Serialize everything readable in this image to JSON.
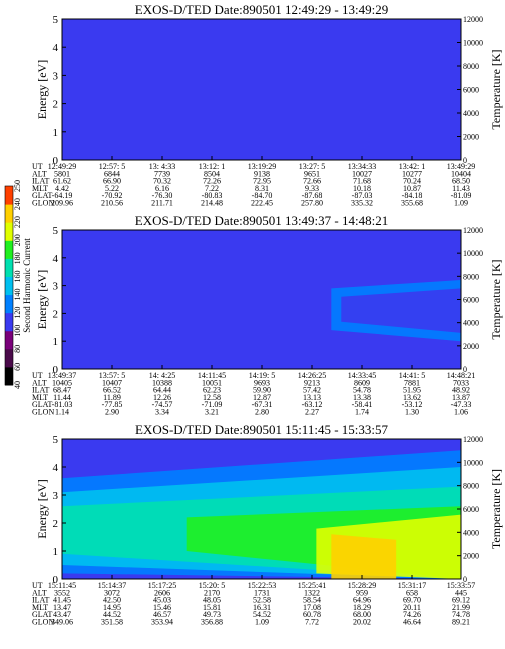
{
  "colors": {
    "background": "#3a3af0",
    "stops": [
      "#000000",
      "#4a0a4a",
      "#7a007a",
      "#3a3af0",
      "#0080ff",
      "#00c0f0",
      "#00e0b0",
      "#20f020",
      "#e0ff00",
      "#ffd000",
      "#ff4000"
    ]
  },
  "colorbar": {
    "title": "Second Harmonic Current",
    "ticks": [
      "40",
      "60",
      "80",
      "100",
      "120",
      "140",
      "160",
      "180",
      "200",
      "220",
      "240",
      "250"
    ]
  },
  "chart_data": [
    {
      "type": "heatmap",
      "title": "EXOS-D/TED   Date:890501   12:49:29 - 13:49:29",
      "ylabel": "Energy [eV]",
      "ylabel_right": "Temperature [K]",
      "ylim": [
        0,
        5
      ],
      "yticks": [
        "0",
        "1",
        "2",
        "3",
        "4",
        "5"
      ],
      "ylim_right": [
        0,
        12000
      ],
      "yticks_right": [
        "0",
        "2000",
        "4000",
        "6000",
        "8000",
        "10000",
        "12000"
      ],
      "rows": [
        "UT",
        "ALT",
        "ILAT",
        "MLT",
        "GLAT",
        "GLON"
      ],
      "columns": [
        [
          "12:49:29",
          "5801",
          "61.62",
          "4.42",
          "-64.19",
          "209.96"
        ],
        [
          "12:57: 5",
          "6844",
          "66.90",
          "5.22",
          "-70.92",
          "210.56"
        ],
        [
          "13: 4:33",
          "7739",
          "70.32",
          "6.16",
          "-76.30",
          "211.71"
        ],
        [
          "13:12: 1",
          "8504",
          "72.26",
          "7.22",
          "-80.83",
          "214.48"
        ],
        [
          "13:19:29",
          "9138",
          "72.95",
          "8.31",
          "-84.70",
          "222.45"
        ],
        [
          "13:27: 5",
          "9651",
          "72.66",
          "9.33",
          "-87.68",
          "257.80"
        ],
        [
          "13:34:33",
          "10027",
          "71.68",
          "10.18",
          "-87.03",
          "335.32"
        ],
        [
          "13:42: 1",
          "10277",
          "70.24",
          "10.87",
          "-84.18",
          "355.68"
        ],
        [
          "13:49:29",
          "10404",
          "68.50",
          "11.43",
          "-81.09",
          "1.09"
        ]
      ],
      "regions": []
    },
    {
      "type": "heatmap",
      "title": "EXOS-D/TED   Date:890501   13:49:37 - 14:48:21",
      "ylabel": "Energy [eV]",
      "ylabel_right": "Temperature [K]",
      "ylim": [
        0,
        5
      ],
      "yticks": [
        "0",
        "1",
        "2",
        "3",
        "4",
        "5"
      ],
      "ylim_right": [
        0,
        12000
      ],
      "yticks_right": [
        "0",
        "2000",
        "4000",
        "6000",
        "8000",
        "10000",
        "12000"
      ],
      "rows": [
        "UT",
        "ALT",
        "ILAT",
        "MLT",
        "GLAT",
        "GLON"
      ],
      "columns": [
        [
          "13:49:37",
          "10405",
          "68.47",
          "11.44",
          "-81.03",
          "1.14"
        ],
        [
          "13:57: 5",
          "10407",
          "66.52",
          "11.89",
          "-77.85",
          "2.90"
        ],
        [
          "14: 4:25",
          "10388",
          "64.44",
          "12.26",
          "-74.57",
          "3.34"
        ],
        [
          "14:11:45",
          "10051",
          "62.23",
          "12.58",
          "-71.09",
          "3.21"
        ],
        [
          "14:19: 5",
          "9693",
          "59.90",
          "12.87",
          "-67.31",
          "2.80"
        ],
        [
          "14:26:25",
          "9213",
          "57.42",
          "13.13",
          "-63.12",
          "2.27"
        ],
        [
          "14:33:45",
          "8609",
          "54.78",
          "13.38",
          "-58.41",
          "1.74"
        ],
        [
          "14:41: 5",
          "7881",
          "51.95",
          "13.62",
          "-53.12",
          "1.30"
        ],
        [
          "14:48:21",
          "7033",
          "48.92",
          "13.87",
          "-47.33",
          "1.06"
        ]
      ],
      "regions": [
        {
          "x0": 5.4,
          "x1": 8,
          "ylo0": 1.4,
          "yhi0": 2.9,
          "ylo1": 1.0,
          "yhi1": 3.2,
          "color": 4
        },
        {
          "x0": 5.6,
          "x1": 8,
          "ylo0": 1.7,
          "yhi0": 2.6,
          "ylo1": 1.3,
          "yhi1": 2.9,
          "color": 3
        }
      ]
    },
    {
      "type": "heatmap",
      "title": "EXOS-D/TED   Date:890501   15:11:45 - 15:33:57",
      "ylabel": "Energy [eV]",
      "ylabel_right": "Temperature [K]",
      "ylim": [
        0,
        5
      ],
      "yticks": [
        "0",
        "1",
        "2",
        "3",
        "4",
        "5"
      ],
      "ylim_right": [
        0,
        12000
      ],
      "yticks_right": [
        "0",
        "2000",
        "4000",
        "6000",
        "8000",
        "10000",
        "12000"
      ],
      "rows": [
        "UT",
        "ALT",
        "ILAT",
        "MLT",
        "GLAT",
        "GLON"
      ],
      "columns": [
        [
          "15:11:45",
          "3552",
          "41.45",
          "13.47",
          "43.47",
          "349.06"
        ],
        [
          "15:14:37",
          "3072",
          "42.50",
          "14.95",
          "44.52",
          "351.58"
        ],
        [
          "15:17:25",
          "2606",
          "45.03",
          "15.46",
          "46.57",
          "353.94"
        ],
        [
          "15:20: 5",
          "2170",
          "48.05",
          "15.81",
          "49.73",
          "356.88"
        ],
        [
          "15:22:53",
          "1731",
          "52.58",
          "16.31",
          "54.52",
          "1.09"
        ],
        [
          "15:25:41",
          "1322",
          "58.54",
          "17.08",
          "60.78",
          "7.72"
        ],
        [
          "15:28:29",
          "959",
          "64.96",
          "18.29",
          "68.00",
          "20.02"
        ],
        [
          "15:31:17",
          "658",
          "69.70",
          "20.11",
          "74.26",
          "46.64"
        ],
        [
          "15:33:57",
          "445",
          "69.12",
          "21.99",
          "74.78",
          "89.21"
        ]
      ],
      "regions": [
        {
          "x0": 0,
          "x1": 8,
          "ylo0": 0.2,
          "yhi0": 3.6,
          "ylo1": 0,
          "yhi1": 4.6,
          "color": 4
        },
        {
          "x0": 0,
          "x1": 8,
          "ylo0": 0.5,
          "yhi0": 3.1,
          "ylo1": 0,
          "yhi1": 4.0,
          "color": 5
        },
        {
          "x0": 0,
          "x1": 8,
          "ylo0": 0.9,
          "yhi0": 2.6,
          "ylo1": 0,
          "yhi1": 3.3,
          "color": 6
        },
        {
          "x0": 2.5,
          "x1": 8,
          "ylo0": 1.0,
          "yhi0": 2.2,
          "ylo1": 0,
          "yhi1": 2.6,
          "color": 7
        },
        {
          "x0": 5.1,
          "x1": 8,
          "ylo0": 0.2,
          "yhi0": 1.8,
          "ylo1": 0,
          "yhi1": 2.3,
          "color": 8
        },
        {
          "x0": 5.4,
          "x1": 6.7,
          "ylo0": 0,
          "yhi0": 1.6,
          "ylo1": 0,
          "yhi1": 1.4,
          "color": 9
        }
      ]
    }
  ]
}
